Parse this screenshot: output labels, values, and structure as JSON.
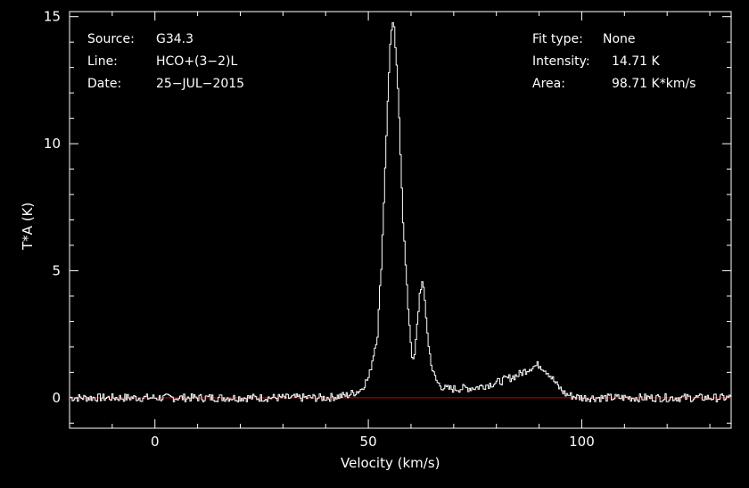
{
  "info_left": {
    "source_label": "Source:",
    "source_value": "G34.3",
    "line_label": "Line:",
    "line_value": "HCO+(3−2)L",
    "date_label": "Date:",
    "date_value": "25−JUL−2015"
  },
  "info_right": {
    "fit_label": "Fit type:",
    "fit_value": "None",
    "intensity_label": "Intensity:",
    "intensity_value": "14.71 K",
    "area_label": "Area:",
    "area_value": "98.71 K*km/s"
  },
  "chart_data": {
    "type": "line",
    "xlabel": "Velocity (km/s)",
    "ylabel": "T*A (K)",
    "xlim": [
      -20,
      135
    ],
    "ylim": [
      -1.2,
      15.2
    ],
    "xticks": [
      0,
      50,
      100
    ],
    "yticks": [
      0,
      5,
      10,
      15
    ],
    "grid": false,
    "baseline": 0,
    "colors": {
      "background": "#000000",
      "spectrum": "#ffffff",
      "baseline": "#cc0000",
      "axes": "#ffffff"
    },
    "series": [
      {
        "x": [
          -20,
          40,
          45,
          48,
          50,
          52,
          53,
          54,
          55,
          55.5,
          56,
          57,
          58,
          59,
          60,
          60.5,
          61,
          62,
          62.5,
          63,
          64,
          65,
          66,
          67,
          68,
          70,
          75,
          80,
          85,
          88,
          90,
          92,
          94,
          96,
          98,
          100,
          135
        ],
        "y": [
          0,
          0,
          0.1,
          0.3,
          0.8,
          2.5,
          5.5,
          10.0,
          14.0,
          14.7,
          14.4,
          11.5,
          7.0,
          4.0,
          1.8,
          1.3,
          2.2,
          4.3,
          4.5,
          4.0,
          2.0,
          1.0,
          0.6,
          0.45,
          0.35,
          0.35,
          0.4,
          0.6,
          0.9,
          1.2,
          1.3,
          1.0,
          0.5,
          0.15,
          0.05,
          0,
          0
        ]
      }
    ]
  }
}
